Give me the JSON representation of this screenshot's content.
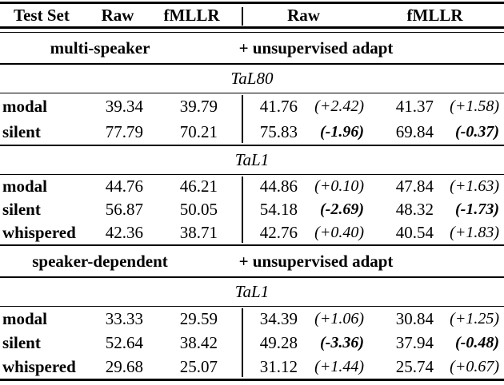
{
  "colors": {
    "text": "#000000",
    "rule": "#000000",
    "background": "#ffffff"
  },
  "t": {
    "header": {
      "test_set": "Test Set",
      "raw": "Raw",
      "fmllr": "fMLLR",
      "raw_adapt": "Raw",
      "fmllr_adapt": "fMLLR"
    },
    "sections": [
      {
        "left_label": "multi-speaker",
        "right_label": "+ unsupervised adapt",
        "groups": [
          {
            "dataset": "TaL80",
            "rows": [
              {
                "label": "modal",
                "raw": "39.34",
                "fmllr": "39.79",
                "aval": "41.76",
                "adelta": "(+2.42)",
                "bval": "41.37",
                "bdelta": "(+1.58)"
              },
              {
                "label": "silent",
                "raw": "77.79",
                "fmllr": "70.21",
                "aval": "75.83",
                "adelta": "(-1.96)",
                "bval": "69.84",
                "bdelta": "(-0.37)"
              }
            ]
          },
          {
            "dataset": "TaL1",
            "rows": [
              {
                "label": "modal",
                "raw": "44.76",
                "fmllr": "46.21",
                "aval": "44.86",
                "adelta": "(+0.10)",
                "bval": "47.84",
                "bdelta": "(+1.63)"
              },
              {
                "label": "silent",
                "raw": "56.87",
                "fmllr": "50.05",
                "aval": "54.18",
                "adelta": "(-2.69)",
                "bval": "48.32",
                "bdelta": "(-1.73)"
              },
              {
                "label": "whispered",
                "raw": "42.36",
                "fmllr": "38.71",
                "aval": "42.76",
                "adelta": "(+0.40)",
                "bval": "40.54",
                "bdelta": "(+1.83)"
              }
            ]
          }
        ]
      },
      {
        "left_label": "speaker-dependent",
        "right_label": "+ unsupervised adapt",
        "groups": [
          {
            "dataset": "TaL1",
            "rows": [
              {
                "label": "modal",
                "raw": "33.33",
                "fmllr": "29.59",
                "aval": "34.39",
                "adelta": "(+1.06)",
                "bval": "30.84",
                "bdelta": "(+1.25)"
              },
              {
                "label": "silent",
                "raw": "52.64",
                "fmllr": "38.42",
                "aval": "49.28",
                "adelta": "(-3.36)",
                "bval": "37.94",
                "bdelta": "(-0.48)"
              },
              {
                "label": "whispered",
                "raw": "29.68",
                "fmllr": "25.07",
                "aval": "31.12",
                "adelta": "(+1.44)",
                "bval": "25.74",
                "bdelta": "(+0.67)"
              }
            ]
          }
        ]
      }
    ]
  }
}
